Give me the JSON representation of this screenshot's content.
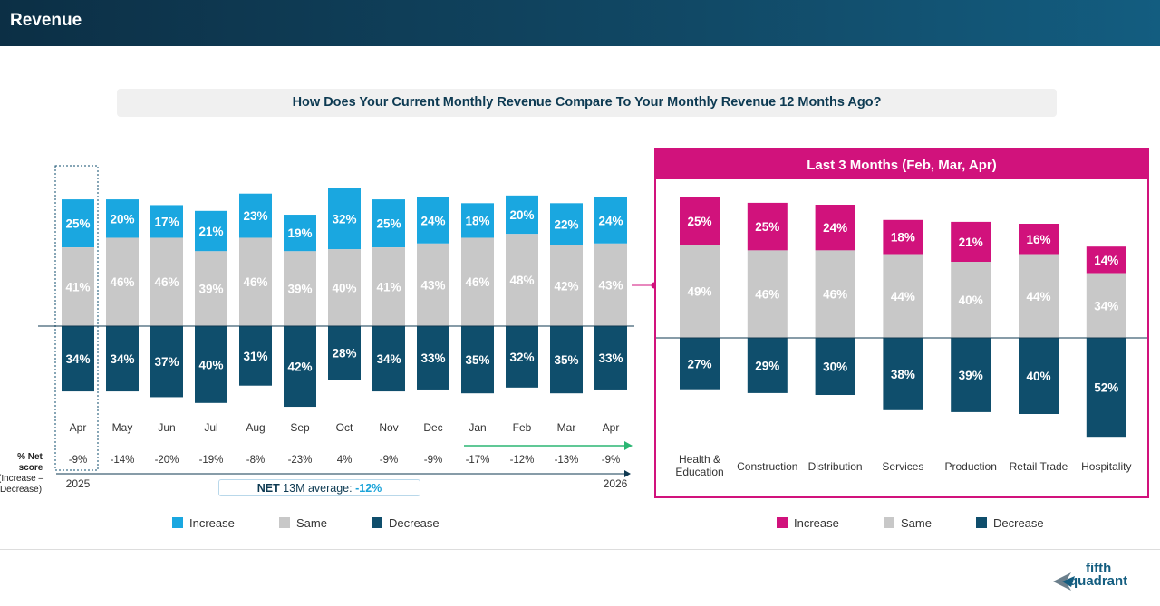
{
  "header": {
    "title": "Revenue"
  },
  "question": "How Does Your Current Monthly Revenue Compare To Your Monthly Revenue 12 Months Ago?",
  "net_label": "% Net score (Increase – Decrease)",
  "net_avg": {
    "prefix": "NET",
    "text": " 13M average: ",
    "value": "-12%"
  },
  "years": {
    "start": "2025",
    "end": "2026"
  },
  "panel_title": "Last 3 Months (Feb, Mar, Apr)",
  "colors": {
    "increase": "#1aa7e0",
    "same": "#c8c8c8",
    "decrease": "#0f4e6c",
    "industry_increase": "#d1127c",
    "panel_border": "#d1127c",
    "arrow": "#2bb673"
  },
  "legend_left": [
    {
      "label": "Increase",
      "color": "#1aa7e0"
    },
    {
      "label": "Same",
      "color": "#c8c8c8"
    },
    {
      "label": "Decrease",
      "color": "#0f4e6c"
    }
  ],
  "legend_right": [
    {
      "label": "Increase",
      "color": "#d1127c"
    },
    {
      "label": "Same",
      "color": "#c8c8c8"
    },
    {
      "label": "Decrease",
      "color": "#0f4e6c"
    }
  ],
  "logo": {
    "line1": "fifth",
    "line2": "quadrant"
  },
  "chart_data": [
    {
      "type": "bar",
      "stacked": true,
      "categories": [
        "Apr",
        "May",
        "Jun",
        "Jul",
        "Aug",
        "Sep",
        "Oct",
        "Nov",
        "Dec",
        "Jan",
        "Feb",
        "Mar",
        "Apr"
      ],
      "series": [
        {
          "name": "Increase",
          "values": [
            25,
            20,
            17,
            21,
            23,
            19,
            32,
            25,
            24,
            18,
            20,
            22,
            24
          ]
        },
        {
          "name": "Same",
          "values": [
            41,
            46,
            46,
            39,
            46,
            39,
            40,
            41,
            43,
            46,
            48,
            42,
            43
          ]
        },
        {
          "name": "Decrease",
          "values": [
            34,
            34,
            37,
            40,
            31,
            42,
            28,
            34,
            33,
            35,
            32,
            35,
            33
          ]
        }
      ],
      "net_score": [
        "-9%",
        "-14%",
        "-20%",
        "-19%",
        "-8%",
        "-23%",
        "4%",
        "-9%",
        "-9%",
        "-17%",
        "-12%",
        "-13%",
        "-9%"
      ]
    },
    {
      "type": "bar",
      "stacked": true,
      "title": "Last 3 Months (Feb, Mar, Apr)",
      "categories": [
        "Health & Education",
        "Construction",
        "Distribution",
        "Services",
        "Production",
        "Retail Trade",
        "Hospitality"
      ],
      "series": [
        {
          "name": "Increase",
          "values": [
            25,
            25,
            24,
            18,
            21,
            16,
            14
          ]
        },
        {
          "name": "Same",
          "values": [
            49,
            46,
            46,
            44,
            40,
            44,
            34
          ]
        },
        {
          "name": "Decrease",
          "values": [
            27,
            29,
            30,
            38,
            39,
            40,
            52
          ]
        }
      ]
    }
  ]
}
